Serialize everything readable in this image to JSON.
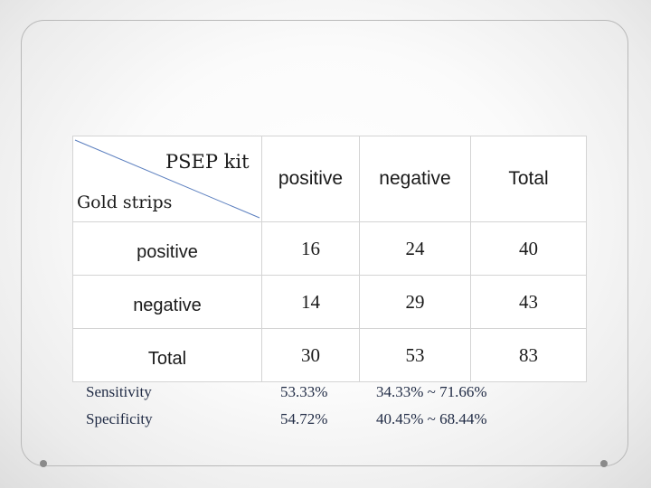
{
  "table": {
    "corner": {
      "column_header": "PSEP kit",
      "row_header": "Gold  strips"
    },
    "columns": [
      "positive",
      "negative",
      "Total"
    ],
    "rows": [
      {
        "label": "positive",
        "values": [
          "16",
          "24",
          "40"
        ]
      },
      {
        "label": "negative",
        "values": [
          "14",
          "29",
          "43"
        ]
      },
      {
        "label": "Total",
        "values": [
          "30",
          "53",
          "83"
        ]
      }
    ]
  },
  "stats": [
    {
      "label": "Sensitivity",
      "value": "53.33%",
      "ci": "34.33% ~ 71.66%"
    },
    {
      "label": "Specificity",
      "value": "54.72%",
      "ci": "40.45% ~ 68.44%"
    }
  ],
  "colors": {
    "diagonal_line": "#5b7fbf",
    "stats_text": "#1f2a44",
    "cell_border": "#d4d4d4"
  }
}
